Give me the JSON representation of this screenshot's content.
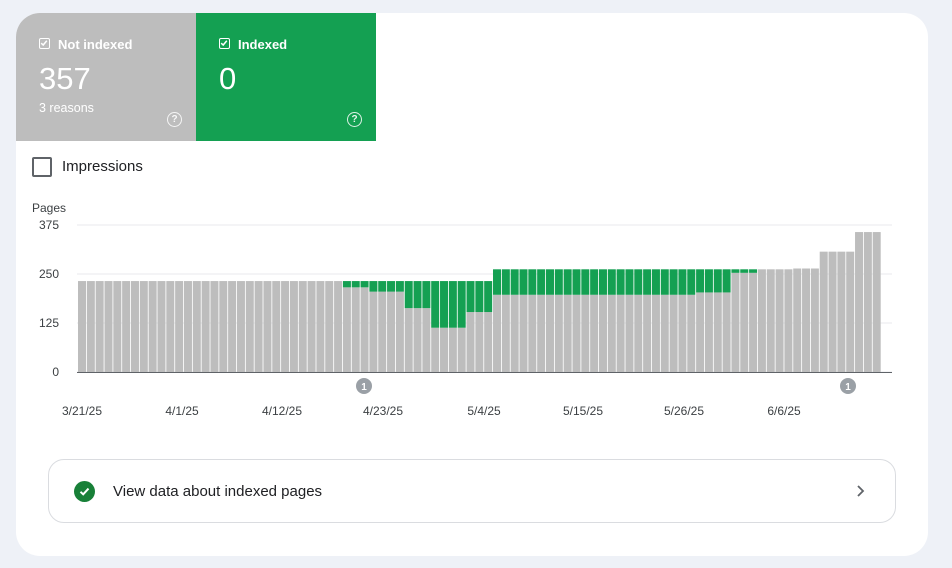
{
  "tiles": {
    "not_indexed": {
      "label": "Not indexed",
      "count": "357",
      "sub": "3 reasons",
      "color": "#bdbdbd",
      "checked": true
    },
    "indexed": {
      "label": "Indexed",
      "count": "0",
      "color": "#14a052",
      "checked": true
    }
  },
  "icons": {
    "tile_check": "checkbox-checked-icon",
    "help": "help-circle-icon",
    "cta": "check-circle-icon",
    "chevron": "chevron-right-icon"
  },
  "impressions": {
    "label": "Impressions",
    "checked": false
  },
  "chart_data": {
    "type": "bar",
    "stacked": true,
    "ylabel": "Pages",
    "ylim": [
      0,
      375
    ],
    "yticks": [
      "375",
      "250",
      "125",
      "0"
    ],
    "xticks": [
      "3/21/25",
      "4/1/25",
      "4/12/25",
      "4/23/25",
      "5/4/25",
      "5/15/25",
      "5/26/25",
      "6/6/25"
    ],
    "annotations": [
      "1",
      "1"
    ],
    "grid": true,
    "series": [
      {
        "name": "Not indexed",
        "color": "#bdbdbd",
        "values": [
          232,
          232,
          232,
          232,
          232,
          232,
          232,
          232,
          232,
          232,
          232,
          232,
          232,
          232,
          232,
          232,
          232,
          232,
          232,
          232,
          232,
          232,
          232,
          232,
          232,
          232,
          232,
          232,
          232,
          232,
          216,
          216,
          216,
          205,
          205,
          205,
          205,
          163,
          163,
          163,
          113,
          113,
          113,
          113,
          153,
          153,
          153,
          197,
          197,
          197,
          197,
          197,
          197,
          197,
          197,
          197,
          197,
          197,
          197,
          197,
          197,
          197,
          197,
          197,
          197,
          197,
          197,
          197,
          197,
          197,
          203,
          203,
          203,
          203,
          253,
          253,
          253,
          262,
          262,
          262,
          262,
          264,
          264,
          264,
          307,
          307,
          307,
          307,
          357,
          357,
          357
        ]
      },
      {
        "name": "Indexed",
        "color": "#14a052",
        "values": [
          0,
          0,
          0,
          0,
          0,
          0,
          0,
          0,
          0,
          0,
          0,
          0,
          0,
          0,
          0,
          0,
          0,
          0,
          0,
          0,
          0,
          0,
          0,
          0,
          0,
          0,
          0,
          0,
          0,
          0,
          16,
          16,
          16,
          27,
          27,
          27,
          27,
          69,
          69,
          69,
          119,
          119,
          119,
          119,
          79,
          79,
          79,
          65,
          65,
          65,
          65,
          65,
          65,
          65,
          65,
          65,
          65,
          65,
          65,
          65,
          65,
          65,
          65,
          65,
          65,
          65,
          65,
          65,
          65,
          65,
          59,
          59,
          59,
          59,
          9,
          9,
          9,
          0,
          0,
          0,
          0,
          0,
          0,
          0,
          0,
          0,
          0,
          0,
          0,
          0,
          0
        ]
      }
    ]
  },
  "cta": {
    "label": "View data about indexed pages"
  }
}
